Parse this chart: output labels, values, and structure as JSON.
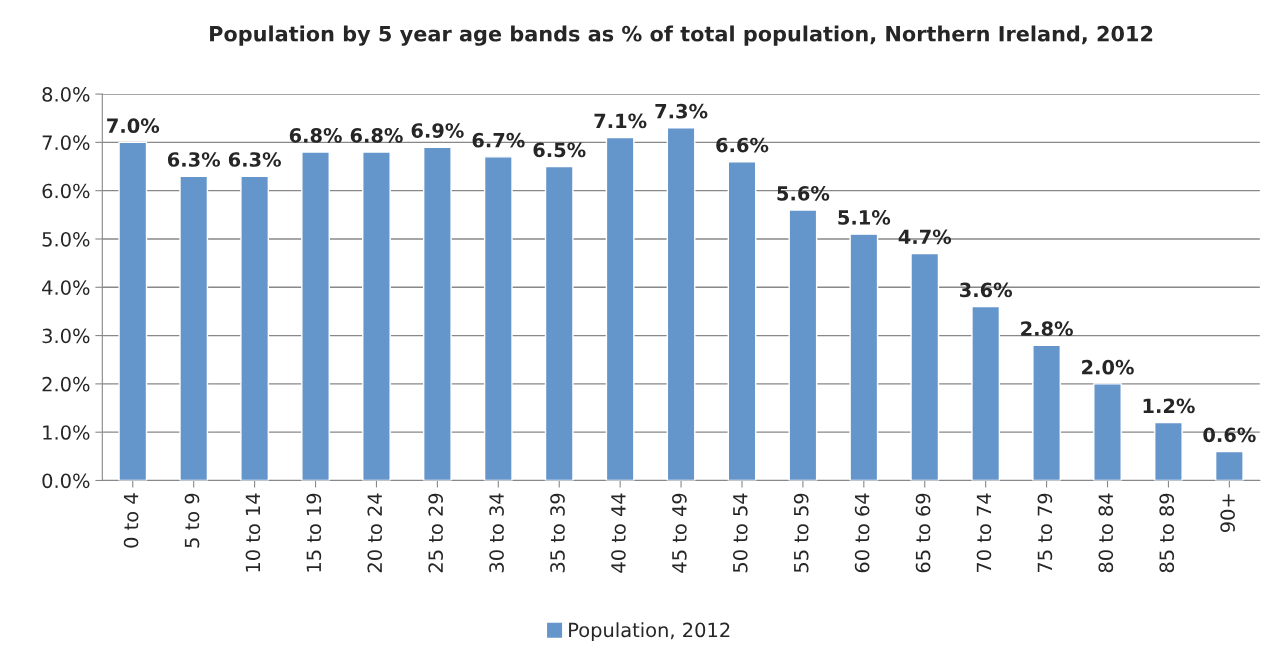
{
  "chart_data": {
    "type": "bar",
    "title": "Population by 5 year age bands as % of total population, Northern Ireland, 2012",
    "categories": [
      "0 to 4",
      "5 to 9",
      "10 to 14",
      "15 to 19",
      "20 to 24",
      "25 to 29",
      "30 to 34",
      "35 to 39",
      "40 to 44",
      "45 to 49",
      "50 to 54",
      "55 to 59",
      "60 to 64",
      "65 to 69",
      "70 to 74",
      "75 to 79",
      "80 to 84",
      "85 to 89",
      "90+"
    ],
    "series": [
      {
        "name": "Population, 2012",
        "color": "#6495cb",
        "values": [
          7.0,
          6.3,
          6.3,
          6.8,
          6.8,
          6.9,
          6.7,
          6.5,
          7.1,
          7.3,
          6.6,
          5.6,
          5.1,
          4.7,
          3.6,
          2.8,
          2.0,
          1.2,
          0.6
        ],
        "value_labels": [
          "7.0%",
          "6.3%",
          "6.3%",
          "6.8%",
          "6.8%",
          "6.9%",
          "6.7%",
          "6.5%",
          "7.1%",
          "7.3%",
          "6.6%",
          "5.6%",
          "5.1%",
          "4.7%",
          "3.6%",
          "2.8%",
          "2.0%",
          "1.2%",
          "0.6%"
        ]
      }
    ],
    "ylim": [
      0,
      8
    ],
    "yticks": [
      {
        "value": 0,
        "label": "0.0%"
      },
      {
        "value": 1,
        "label": "1.0%"
      },
      {
        "value": 2,
        "label": "2.0%"
      },
      {
        "value": 3,
        "label": "3.0%"
      },
      {
        "value": 4,
        "label": "4.0%"
      },
      {
        "value": 5,
        "label": "5.0%"
      },
      {
        "value": 6,
        "label": "6.0%"
      },
      {
        "value": 7,
        "label": "7.0%"
      },
      {
        "value": 8,
        "label": "8.0%"
      }
    ],
    "grid": "y",
    "legend": "bottom"
  }
}
